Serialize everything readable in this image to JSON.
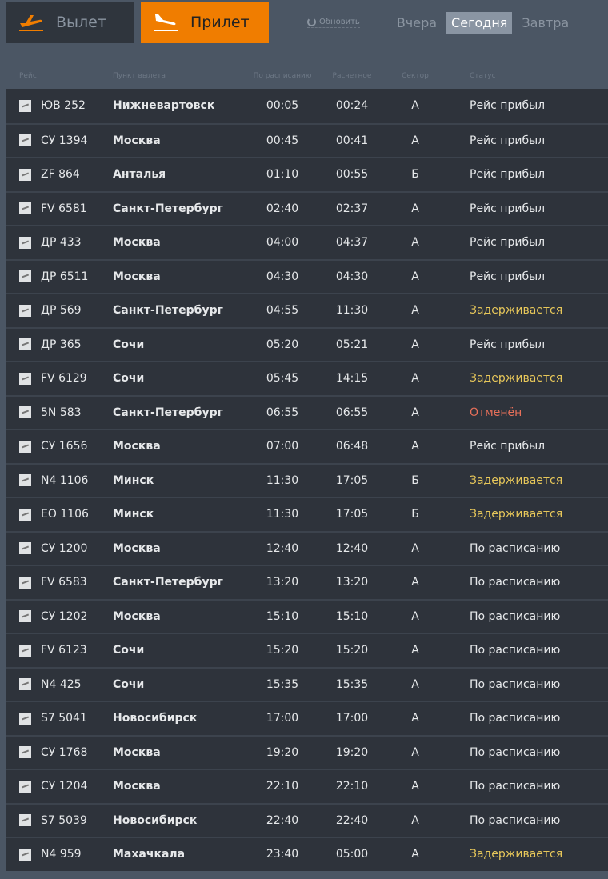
{
  "tabs": {
    "departure": "Вылет",
    "arrival": "Прилет",
    "active": "arrival"
  },
  "refresh": "Обновить",
  "days": [
    {
      "label": "Вчера",
      "selected": false
    },
    {
      "label": "Сегодня",
      "selected": true
    },
    {
      "label": "Завтра",
      "selected": false
    }
  ],
  "colors": {
    "accent": "#f07d00",
    "delayed": "#e8c85a",
    "cancelled": "#e8705a",
    "row_bg": "#2e333b",
    "page_bg": "#4b5664"
  },
  "columns": [
    "Рейс",
    "Пункт вылета",
    "По расписанию",
    "Расчетное",
    "Сектор",
    "Статус"
  ],
  "flights": [
    [
      "ЮВ 252",
      "Нижневартовск",
      "00:05",
      "00:24",
      "А",
      "Рейс прибыл"
    ],
    [
      "СУ 1394",
      "Москва",
      "00:45",
      "00:41",
      "А",
      "Рейс прибыл"
    ],
    [
      "ZF 864",
      "Анталья",
      "01:10",
      "00:55",
      "Б",
      "Рейс прибыл"
    ],
    [
      "FV 6581",
      "Санкт-Петербург",
      "02:40",
      "02:37",
      "А",
      "Рейс прибыл"
    ],
    [
      "ДР 433",
      "Москва",
      "04:00",
      "04:37",
      "А",
      "Рейс прибыл"
    ],
    [
      "ДР 6511",
      "Москва",
      "04:30",
      "04:30",
      "А",
      "Рейс прибыл"
    ],
    [
      "ДР 569",
      "Санкт-Петербург",
      "04:55",
      "11:30",
      "А",
      "Задерживается"
    ],
    [
      "ДР 365",
      "Сочи",
      "05:20",
      "05:21",
      "А",
      "Рейс прибыл"
    ],
    [
      "FV 6129",
      "Сочи",
      "05:45",
      "14:15",
      "А",
      "Задерживается"
    ],
    [
      "5N 583",
      "Санкт-Петербург",
      "06:55",
      "06:55",
      "А",
      "Отменён"
    ],
    [
      "СУ 1656",
      "Москва",
      "07:00",
      "06:48",
      "А",
      "Рейс прибыл"
    ],
    [
      "N4 1106",
      "Минск",
      "11:30",
      "17:05",
      "Б",
      "Задерживается"
    ],
    [
      "EO 1106",
      "Минск",
      "11:30",
      "17:05",
      "Б",
      "Задерживается"
    ],
    [
      "СУ 1200",
      "Москва",
      "12:40",
      "12:40",
      "А",
      "По расписанию"
    ],
    [
      "FV 6583",
      "Санкт-Петербург",
      "13:20",
      "13:20",
      "А",
      "По расписанию"
    ],
    [
      "СУ 1202",
      "Москва",
      "15:10",
      "15:10",
      "А",
      "По расписанию"
    ],
    [
      "FV 6123",
      "Сочи",
      "15:20",
      "15:20",
      "А",
      "По расписанию"
    ],
    [
      "N4 425",
      "Сочи",
      "15:35",
      "15:35",
      "А",
      "По расписанию"
    ],
    [
      "S7 5041",
      "Новосибирск",
      "17:00",
      "17:00",
      "А",
      "По расписанию"
    ],
    [
      "СУ 1768",
      "Москва",
      "19:20",
      "19:20",
      "А",
      "По расписанию"
    ],
    [
      "СУ 1204",
      "Москва",
      "22:10",
      "22:10",
      "А",
      "По расписанию"
    ],
    [
      "S7 5039",
      "Новосибирск",
      "22:40",
      "22:40",
      "А",
      "По расписанию"
    ],
    [
      "N4 959",
      "Махачкала",
      "23:40",
      "05:00",
      "А",
      "Задерживается"
    ]
  ]
}
